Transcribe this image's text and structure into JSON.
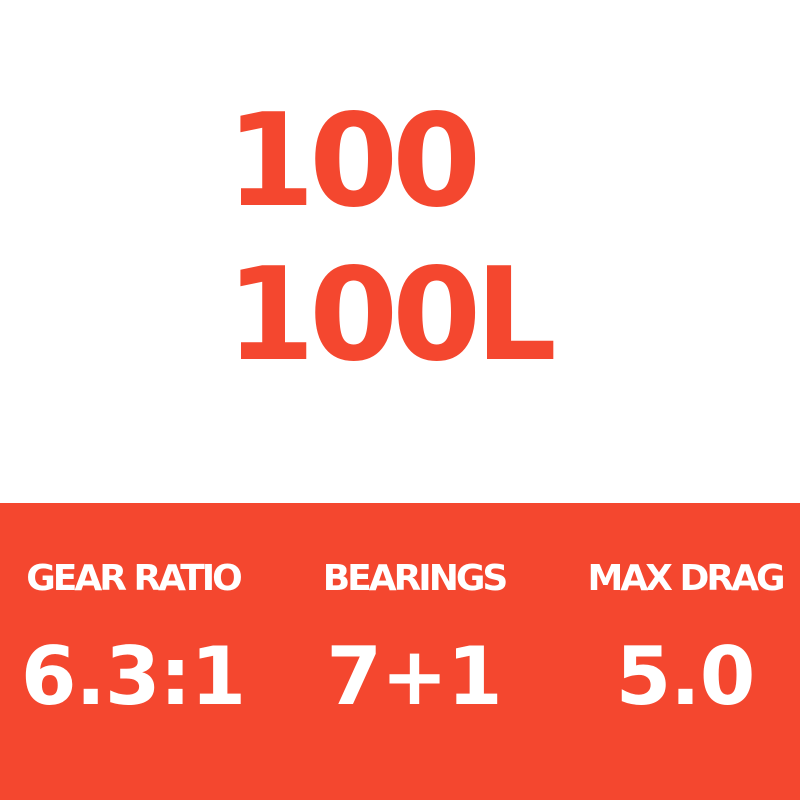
{
  "models": [
    "100",
    "100L"
  ],
  "colors": {
    "accent": "#F4472F",
    "background": "#FFFFFF",
    "band_text": "#FFFFFF"
  },
  "specs": [
    {
      "label": "GEAR RATIO",
      "value": "6.3:1"
    },
    {
      "label": "BEARINGS",
      "value": "7+1"
    },
    {
      "label": "MAX DRAG",
      "value": "5.0"
    }
  ]
}
